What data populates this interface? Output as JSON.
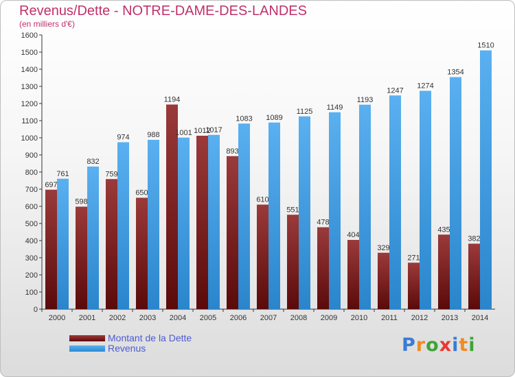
{
  "header": {
    "title": "Revenus/Dette - NOTRE-DAME-DES-LANDES",
    "subtitle": "(en milliers d'€)"
  },
  "brand": {
    "letters": [
      "P",
      "r",
      "o",
      "x",
      "i",
      "t",
      "i"
    ],
    "colors": [
      "#3a7bd5",
      "#f08a24",
      "#3fa535",
      "#e53935",
      "#3a7bd5",
      "#f08a24",
      "#3fa535"
    ]
  },
  "colors": {
    "dette": "#7a1e1e",
    "revenus": "#3d9be0"
  },
  "chart_data": {
    "type": "bar",
    "categories": [
      "2000",
      "2001",
      "2002",
      "2003",
      "2004",
      "2005",
      "2006",
      "2007",
      "2008",
      "2009",
      "2010",
      "2011",
      "2012",
      "2013",
      "2014"
    ],
    "series": [
      {
        "name": "Montant de la Dette",
        "values": [
          697,
          598,
          759,
          650,
          1194,
          1012,
          893,
          610,
          551,
          478,
          404,
          329,
          271,
          435,
          382
        ]
      },
      {
        "name": "Revenus",
        "values": [
          761,
          832,
          974,
          988,
          1001,
          1017,
          1083,
          1089,
          1125,
          1149,
          1193,
          1247,
          1274,
          1354,
          1510
        ]
      }
    ],
    "ylim": [
      0,
      1600
    ],
    "ytick_step": 100,
    "grid": false,
    "legend_position": "bottom-left"
  }
}
